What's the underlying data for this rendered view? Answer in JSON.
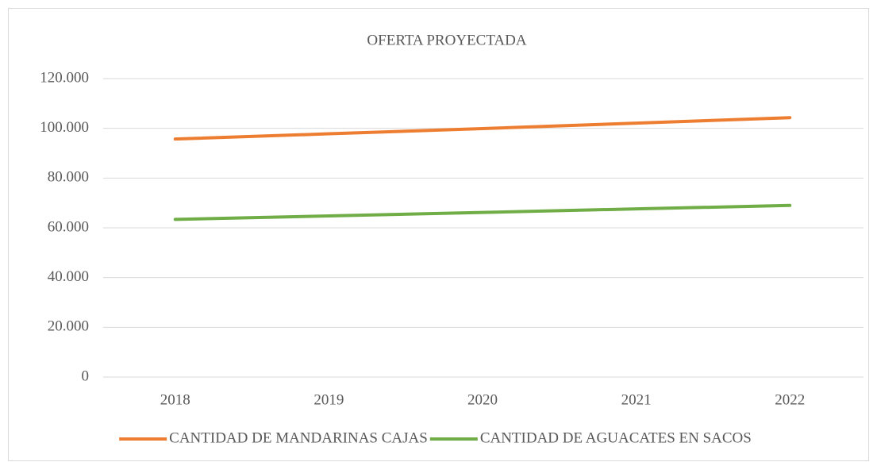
{
  "chart_data": {
    "type": "line",
    "title": "OFERTA PROYECTADA",
    "categories": [
      "2018",
      "2019",
      "2020",
      "2021",
      "2022"
    ],
    "series": [
      {
        "name": "CANTIDAD DE MANDARINAS CAJAS",
        "color": "#ed7d31",
        "values": [
          95700,
          97800,
          99900,
          102100,
          104300
        ]
      },
      {
        "name": "CANTIDAD DE AGUACATES EN SACOS",
        "color": "#70ad47",
        "values": [
          63400,
          64800,
          66200,
          67600,
          69000
        ]
      }
    ],
    "ylim": [
      0,
      120000
    ],
    "yticks": [
      0,
      {
        "value": 20000,
        "label": "20.000"
      },
      {
        "value": 40000,
        "label": "40.000"
      },
      {
        "value": 60000,
        "label": "60.000"
      },
      {
        "value": 80000,
        "label": "80.000"
      },
      {
        "value": 100000,
        "label": "100.000"
      },
      {
        "value": 120000,
        "label": "120.000"
      }
    ],
    "grid": true,
    "legend": "bottom"
  }
}
